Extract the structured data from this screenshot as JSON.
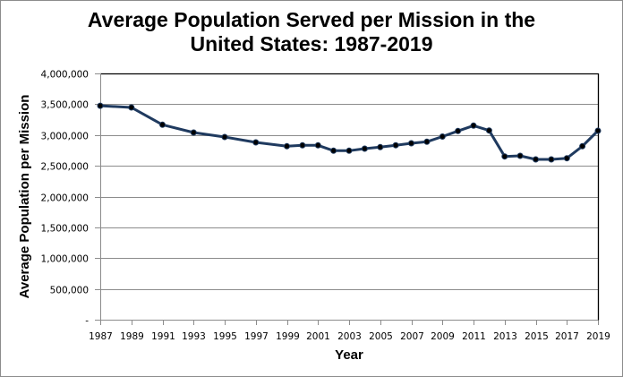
{
  "chart_data": {
    "type": "line",
    "title_lines": [
      "Average Population Served per Mission in the",
      "United States: 1987-2019"
    ],
    "xlabel": "Year",
    "ylabel": "Average Population per Mission",
    "x_tick_labels": [
      "1987",
      "1989",
      "1991",
      "1993",
      "1995",
      "1997",
      "1999",
      "2001",
      "2003",
      "2005",
      "2007",
      "2009",
      "2011",
      "2013",
      "2015",
      "2017",
      "2019"
    ],
    "y_tick_labels": [
      "-",
      "500,000",
      "1,000,000",
      "1,500,000",
      "2,000,000",
      "2,500,000",
      "3,000,000",
      "3,500,000",
      "4,000,000"
    ],
    "y_ticks": [
      0,
      500000,
      1000000,
      1500000,
      2000000,
      2500000,
      3000000,
      3500000,
      4000000
    ],
    "xlim": [
      1987,
      2019
    ],
    "ylim": [
      0,
      4000000
    ],
    "grid": "horizontal",
    "legend": "none",
    "series": [
      {
        "name": "Average Population per Mission",
        "color": "#1f3a5f",
        "marker_color": "#000000",
        "x": [
          1987,
          1989,
          1991,
          1993,
          1995,
          1997,
          1999,
          2000,
          2001,
          2002,
          2003,
          2004,
          2005,
          2006,
          2007,
          2008,
          2009,
          2010,
          2011,
          2012,
          2013,
          2014,
          2015,
          2016,
          2017,
          2018,
          2019
        ],
        "values": [
          3475000,
          3447000,
          3167000,
          3040000,
          2967000,
          2880000,
          2817000,
          2832000,
          2832000,
          2745000,
          2745000,
          2778000,
          2803000,
          2834000,
          2865000,
          2890000,
          2975000,
          3065000,
          3152000,
          3073000,
          2652000,
          2662000,
          2604000,
          2604000,
          2623000,
          2818000,
          3069000
        ]
      }
    ]
  }
}
